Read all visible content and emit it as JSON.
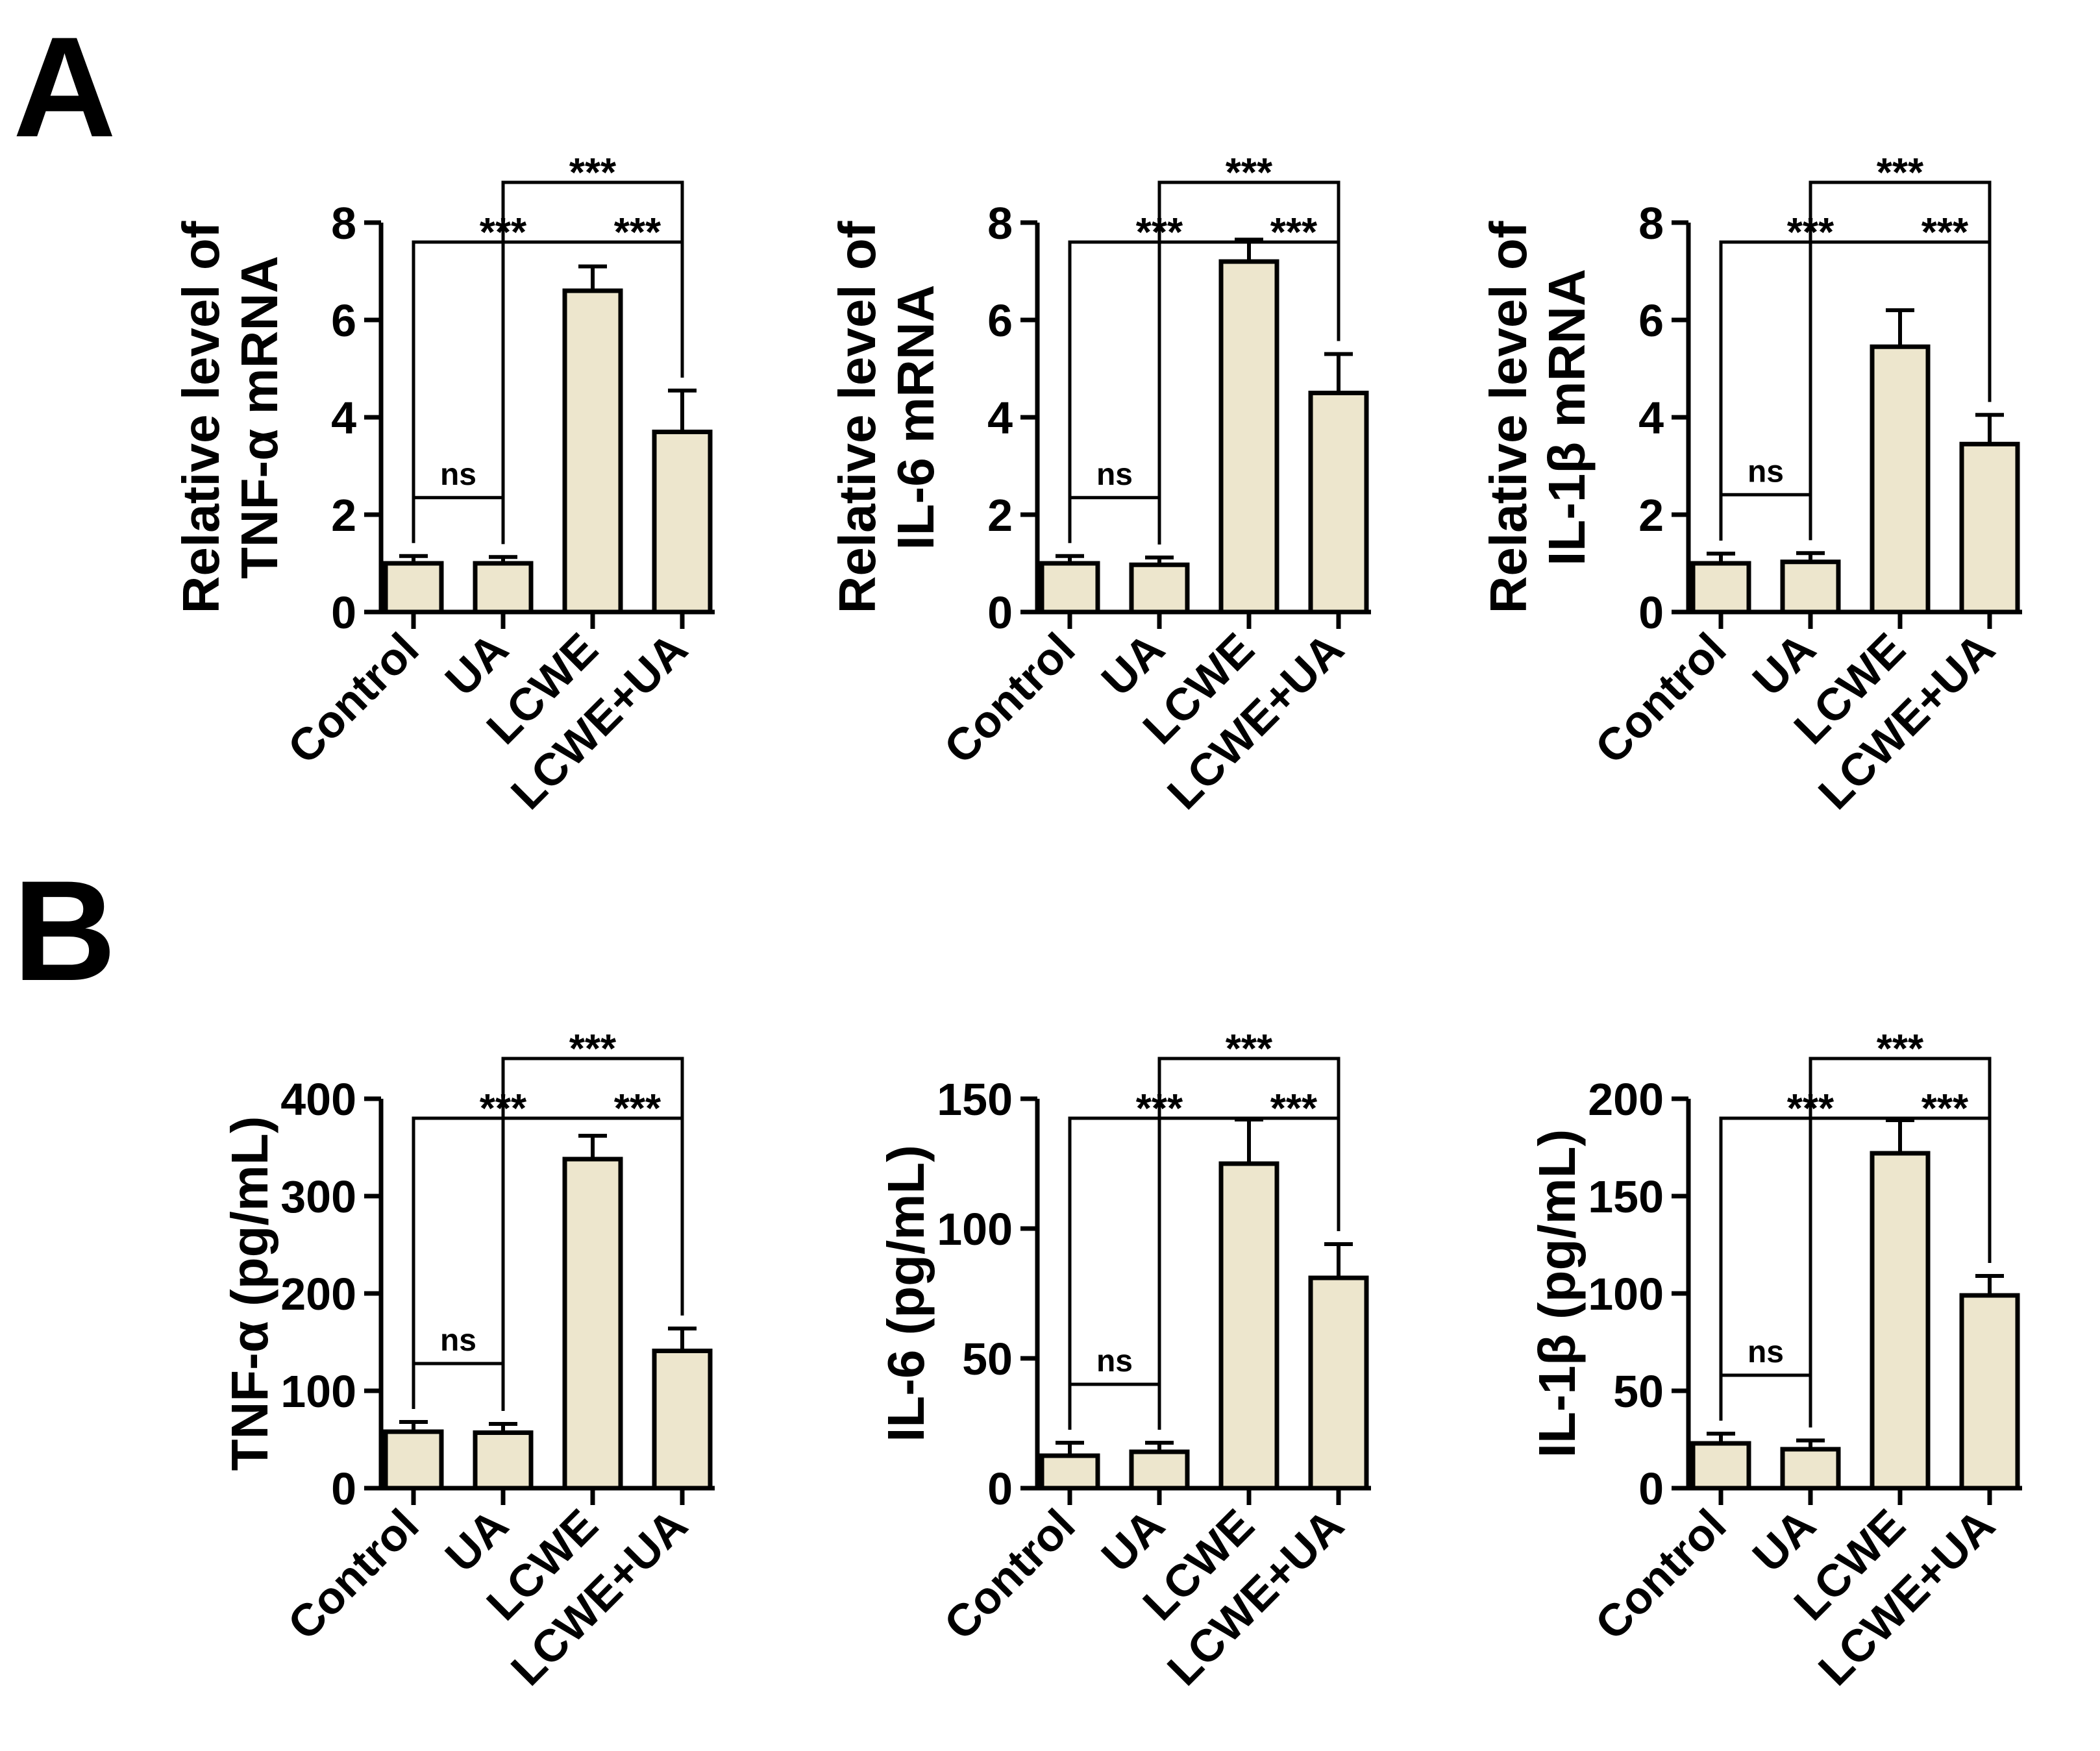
{
  "panel_labels": [
    "A",
    "B"
  ],
  "style": {
    "bar_fill": "#ede6cd",
    "stroke": "#000000"
  },
  "chart_data": [
    {
      "type": "bar",
      "panel": "A",
      "ylabel": [
        "Relative level of",
        "TNF-α mRNA"
      ],
      "categories": [
        "Control",
        "UA",
        "LCWE",
        "LCWE+UA"
      ],
      "values": [
        1.0,
        1.0,
        6.6,
        3.7
      ],
      "errors": [
        0.15,
        0.13,
        0.5,
        0.85
      ],
      "ylim": [
        0,
        8
      ],
      "yticks": [
        "0",
        "2",
        "4",
        "6",
        "8"
      ],
      "brackets": [
        {
          "from": 0,
          "to": 1,
          "label": "ns"
        },
        {
          "from": 0,
          "to": 3,
          "label": "***",
          "drop": 2,
          "mid": "***"
        },
        {
          "from": 1,
          "to": 3,
          "label": "***"
        }
      ]
    },
    {
      "type": "bar",
      "panel": "A",
      "ylabel": [
        "Relative level of",
        "IL-6 mRNA"
      ],
      "categories": [
        "Control",
        "UA",
        "LCWE",
        "LCWE+UA"
      ],
      "values": [
        1.0,
        0.97,
        7.2,
        4.5
      ],
      "errors": [
        0.15,
        0.15,
        0.45,
        0.8
      ],
      "ylim": [
        0,
        8
      ],
      "yticks": [
        "0",
        "2",
        "4",
        "6",
        "8"
      ],
      "brackets": [
        {
          "from": 0,
          "to": 1,
          "label": "ns"
        },
        {
          "from": 0,
          "to": 3,
          "label": "***",
          "drop": 2,
          "mid": "***"
        },
        {
          "from": 1,
          "to": 3,
          "label": "***"
        }
      ]
    },
    {
      "type": "bar",
      "panel": "A",
      "ylabel": [
        "Relative level of",
        "IL-1β mRNA"
      ],
      "categories": [
        "Control",
        "UA",
        "LCWE",
        "LCWE+UA"
      ],
      "values": [
        1.0,
        1.03,
        5.45,
        3.45
      ],
      "errors": [
        0.2,
        0.18,
        0.75,
        0.6
      ],
      "ylim": [
        0,
        8
      ],
      "yticks": [
        "0",
        "2",
        "4",
        "6",
        "8"
      ],
      "brackets": [
        {
          "from": 0,
          "to": 1,
          "label": "ns"
        },
        {
          "from": 0,
          "to": 3,
          "label": "***",
          "drop": 2,
          "mid": "***"
        },
        {
          "from": 1,
          "to": 3,
          "label": "***"
        }
      ]
    },
    {
      "type": "bar",
      "panel": "B",
      "ylabel": [
        "TNF-α (pg/mL)"
      ],
      "categories": [
        "Control",
        "UA",
        "LCWE",
        "LCWE+UA"
      ],
      "values": [
        58,
        57,
        338,
        141
      ],
      "errors": [
        10,
        9,
        24,
        23
      ],
      "ylim": [
        0,
        400
      ],
      "yticks": [
        "0",
        "100",
        "200",
        "300",
        "400"
      ],
      "brackets": [
        {
          "from": 0,
          "to": 1,
          "label": "ns"
        },
        {
          "from": 0,
          "to": 3,
          "label": "***",
          "drop": 2,
          "mid": "***"
        },
        {
          "from": 1,
          "to": 3,
          "label": "***"
        }
      ]
    },
    {
      "type": "bar",
      "panel": "B",
      "ylabel": [
        "IL-6 (pg/mL)"
      ],
      "categories": [
        "Control",
        "UA",
        "LCWE",
        "LCWE+UA"
      ],
      "values": [
        12.5,
        14,
        125,
        81
      ],
      "errors": [
        5,
        3.5,
        17,
        13
      ],
      "ylim": [
        0,
        150
      ],
      "yticks": [
        "0",
        "50",
        "100",
        "150"
      ],
      "brackets": [
        {
          "from": 0,
          "to": 1,
          "label": "ns"
        },
        {
          "from": 0,
          "to": 3,
          "label": "***",
          "drop": 2,
          "mid": "***"
        },
        {
          "from": 1,
          "to": 3,
          "label": "***"
        }
      ]
    },
    {
      "type": "bar",
      "panel": "B",
      "ylabel": [
        "IL-1β (pg/mL)"
      ],
      "categories": [
        "Control",
        "UA",
        "LCWE",
        "LCWE+UA"
      ],
      "values": [
        23,
        20,
        172,
        99
      ],
      "errors": [
        5,
        4.5,
        17,
        10
      ],
      "ylim": [
        0,
        200
      ],
      "yticks": [
        "0",
        "50",
        "100",
        "150",
        "200"
      ],
      "brackets": [
        {
          "from": 0,
          "to": 1,
          "label": "ns"
        },
        {
          "from": 0,
          "to": 3,
          "label": "***",
          "drop": 2,
          "mid": "***"
        },
        {
          "from": 1,
          "to": 3,
          "label": "***"
        }
      ]
    }
  ]
}
